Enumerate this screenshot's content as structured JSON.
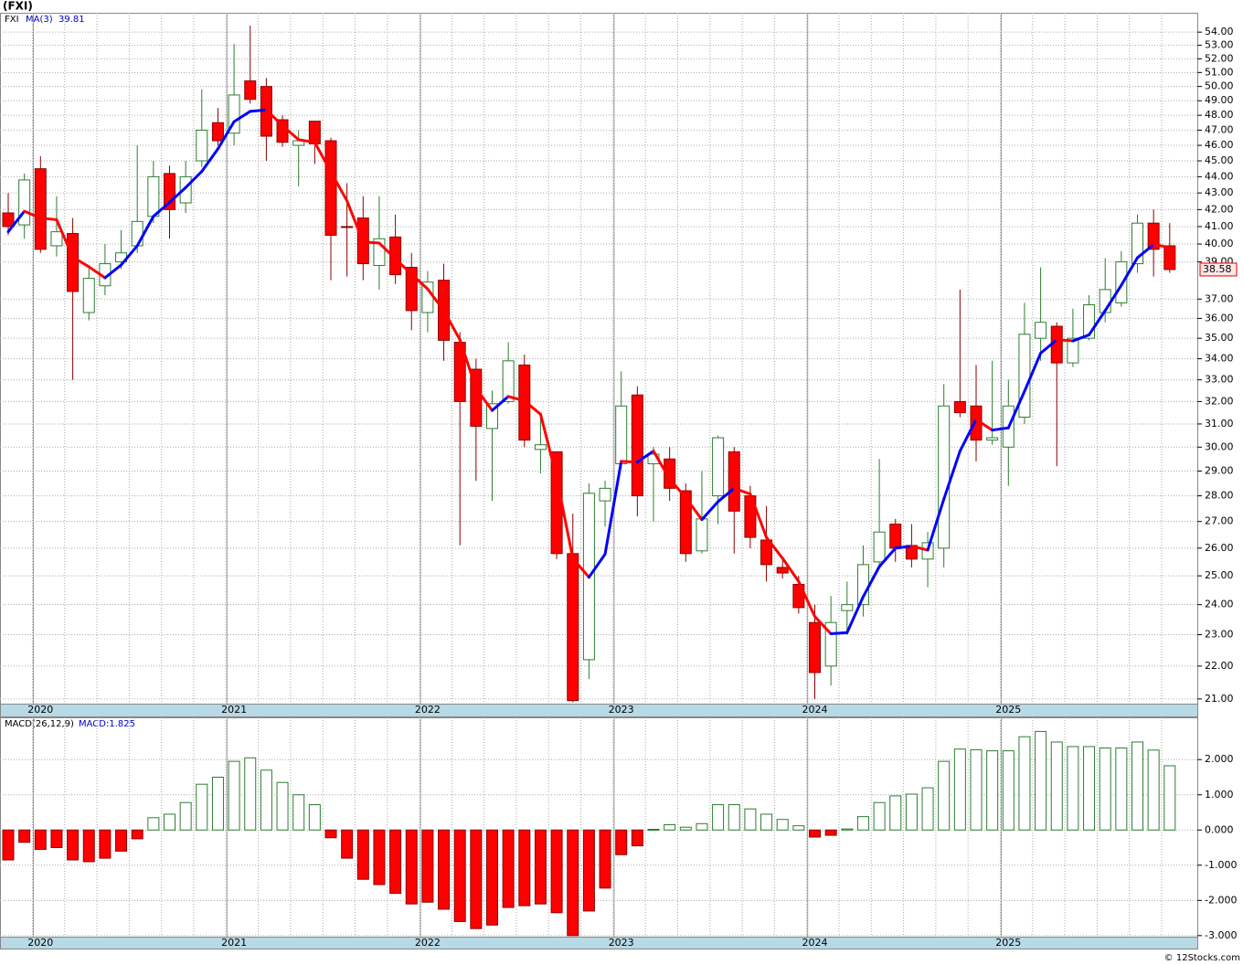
{
  "chart_data": [
    {
      "type": "candlestick",
      "title": "(FXI)",
      "symbol": "FXI",
      "ma_name": "MA(3)",
      "ma_label": "39.81",
      "log_scale": true,
      "categories": [
        null,
        null,
        "2020",
        null,
        null,
        null,
        null,
        null,
        null,
        null,
        null,
        null,
        null,
        null,
        "2021",
        null,
        null,
        null,
        null,
        null,
        null,
        null,
        null,
        null,
        null,
        null,
        "2022",
        null,
        null,
        null,
        null,
        null,
        null,
        null,
        null,
        null,
        null,
        null,
        "2023",
        null,
        null,
        null,
        null,
        null,
        null,
        null,
        null,
        null,
        null,
        null,
        "2024",
        null,
        null,
        null,
        null,
        null,
        null,
        null,
        null,
        null,
        null,
        null,
        "2025",
        null,
        null,
        null,
        null,
        null,
        null,
        null,
        null,
        null,
        null
      ],
      "open": [
        41.8,
        41.1,
        44.5,
        39.9,
        40.6,
        36.3,
        37.7,
        39.0,
        39.9,
        41.6,
        44.2,
        42.4,
        45.0,
        47.5,
        46.8,
        50.4,
        50.0,
        47.7,
        46.0,
        47.6,
        46.3,
        41.0,
        41.5,
        38.8,
        40.4,
        38.7,
        36.3,
        38.0,
        34.8,
        33.5,
        30.8,
        32.0,
        33.7,
        29.9,
        29.8,
        25.8,
        22.2,
        27.8,
        29.3,
        32.3,
        29.3,
        29.5,
        28.2,
        25.9,
        28.0,
        29.8,
        28.0,
        26.3,
        25.3,
        24.7,
        23.4,
        22.0,
        23.8,
        24.0,
        25.5,
        26.9,
        26.1,
        25.6,
        26.0,
        32.0,
        31.8,
        30.3,
        30.0,
        31.3,
        35.0,
        35.6,
        33.8,
        35.0,
        36.3,
        36.8,
        38.9,
        41.2,
        39.9
      ],
      "high": [
        43.0,
        44.2,
        45.3,
        42.8,
        41.5,
        38.8,
        40.0,
        40.8,
        46.0,
        45.0,
        44.7,
        45.0,
        49.8,
        48.5,
        53.1,
        54.5,
        50.6,
        48.0,
        47.0,
        47.5,
        46.5,
        43.6,
        42.8,
        42.8,
        41.7,
        39.5,
        38.5,
        38.9,
        35.3,
        34.0,
        32.5,
        34.8,
        34.2,
        31.3,
        29.6,
        27.3,
        28.5,
        28.6,
        33.4,
        32.7,
        30.0,
        30.0,
        28.5,
        29.0,
        30.5,
        30.0,
        28.4,
        27.6,
        25.6,
        25.0,
        24.0,
        24.3,
        24.8,
        26.1,
        29.5,
        27.1,
        26.9,
        26.6,
        32.8,
        37.5,
        33.7,
        33.9,
        33.0,
        36.8,
        38.7,
        35.8,
        36.5,
        37.2,
        39.2,
        39.6,
        41.7,
        42.0,
        41.2
      ],
      "low": [
        40.5,
        40.3,
        39.5,
        39.3,
        33.0,
        35.9,
        37.2,
        38.6,
        39.5,
        41.2,
        40.3,
        41.8,
        44.6,
        46.0,
        46.0,
        48.8,
        45.0,
        45.9,
        43.4,
        44.8,
        38.0,
        38.2,
        38.0,
        37.5,
        37.8,
        35.4,
        35.3,
        33.9,
        26.1,
        28.6,
        27.8,
        31.9,
        30.0,
        28.9,
        25.6,
        20.9,
        21.6,
        26.8,
        29.1,
        27.2,
        27.0,
        27.8,
        25.5,
        25.8,
        26.9,
        25.8,
        26.0,
        24.8,
        24.9,
        23.7,
        21.0,
        21.4,
        23.0,
        23.6,
        25.3,
        25.5,
        25.3,
        24.6,
        25.3,
        31.3,
        29.4,
        30.1,
        28.4,
        31.0,
        33.9,
        29.2,
        33.6,
        34.9,
        35.8,
        36.6,
        38.4,
        38.2,
        38.4
      ],
      "close": [
        41.0,
        43.8,
        39.7,
        40.7,
        37.4,
        38.1,
        38.9,
        39.5,
        41.3,
        44.0,
        42.0,
        44.0,
        47.0,
        46.3,
        49.4,
        49.1,
        46.6,
        46.2,
        46.3,
        46.1,
        40.5,
        40.95,
        38.9,
        40.3,
        38.3,
        36.4,
        37.9,
        34.9,
        32.0,
        30.9,
        31.9,
        33.9,
        30.3,
        30.1,
        25.8,
        20.95,
        28.1,
        28.3,
        31.8,
        28.0,
        29.7,
        28.3,
        25.8,
        27.1,
        30.4,
        27.4,
        26.4,
        25.4,
        25.1,
        23.9,
        21.8,
        23.4,
        24.0,
        25.4,
        26.6,
        26.0,
        25.6,
        26.2,
        31.8,
        31.5,
        30.3,
        30.4,
        31.8,
        35.2,
        35.8,
        33.8,
        35.0,
        36.7,
        37.5,
        39.0,
        41.2,
        39.7,
        38.58
      ],
      "ma": [
        40.7,
        41.9,
        41.5,
        41.4,
        39.27,
        38.73,
        38.13,
        38.83,
        39.9,
        41.6,
        42.43,
        43.33,
        44.33,
        45.77,
        47.57,
        48.27,
        48.37,
        47.3,
        46.37,
        46.2,
        44.3,
        42.52,
        40.12,
        40.05,
        39.17,
        38.33,
        37.53,
        36.4,
        34.93,
        32.6,
        31.6,
        32.23,
        32.03,
        31.43,
        28.73,
        25.62,
        24.95,
        25.78,
        29.4,
        29.37,
        29.83,
        28.67,
        27.93,
        27.07,
        27.77,
        28.3,
        28.07,
        26.4,
        25.63,
        24.8,
        23.6,
        23.03,
        23.07,
        24.27,
        25.33,
        26.0,
        26.07,
        25.93,
        27.87,
        29.83,
        31.2,
        30.73,
        30.83,
        32.47,
        34.27,
        34.93,
        34.87,
        35.17,
        36.4,
        37.73,
        39.23,
        39.97,
        39.81
      ],
      "up_color": "#ffffff",
      "up_line": "#2e7d32",
      "down_color": "#ff0000",
      "down_line": "#8b0000",
      "ma_up_color": "#0000ff",
      "ma_down_color": "#ff0000",
      "ylim": [
        20.86,
        55.5
      ],
      "yticks": [
        {
          "value": 21,
          "label": "21.00"
        },
        {
          "value": 22,
          "label": "22.00"
        },
        {
          "value": 23,
          "label": "23.00"
        },
        {
          "value": 24,
          "label": "24.00"
        },
        {
          "value": 25,
          "label": "25.00"
        },
        {
          "value": 26,
          "label": "26.00"
        },
        {
          "value": 27,
          "label": "27.00"
        },
        {
          "value": 28,
          "label": "28.00"
        },
        {
          "value": 29,
          "label": "29.00"
        },
        {
          "value": 30,
          "label": "30.00"
        },
        {
          "value": 31,
          "label": "31.00"
        },
        {
          "value": 32,
          "label": "32.00"
        },
        {
          "value": 33,
          "label": "33.00"
        },
        {
          "value": 34,
          "label": "34.00"
        },
        {
          "value": 35,
          "label": "35.00"
        },
        {
          "value": 36,
          "label": "36.00"
        },
        {
          "value": 37,
          "label": "37.00"
        },
        {
          "value": 39,
          "label": "39.00"
        },
        {
          "value": 40,
          "label": "40.00"
        },
        {
          "value": 41,
          "label": "41.00"
        },
        {
          "value": 42,
          "label": "42.00"
        },
        {
          "value": 43,
          "label": "43.00"
        },
        {
          "value": 44,
          "label": "44.00"
        },
        {
          "value": 45,
          "label": "45.00"
        },
        {
          "value": 46,
          "label": "46.00"
        },
        {
          "value": 47,
          "label": "47.00"
        },
        {
          "value": 48,
          "label": "48.00"
        },
        {
          "value": 49,
          "label": "49.00"
        },
        {
          "value": 50,
          "label": "50.00"
        },
        {
          "value": 51,
          "label": "51.00"
        },
        {
          "value": 52,
          "label": "52.00"
        },
        {
          "value": 53,
          "label": "53.00"
        },
        {
          "value": 54,
          "label": "54.00"
        }
      ],
      "grid": true
    },
    {
      "type": "histogram_macd",
      "title": "MACD(26,12,9)",
      "macd_label": "MACD:1.825",
      "categories": [
        null,
        null,
        "2020",
        null,
        null,
        null,
        null,
        null,
        null,
        null,
        null,
        null,
        null,
        null,
        "2021",
        null,
        null,
        null,
        null,
        null,
        null,
        null,
        null,
        null,
        null,
        null,
        "2022",
        null,
        null,
        null,
        null,
        null,
        null,
        null,
        null,
        null,
        null,
        null,
        "2023",
        null,
        null,
        null,
        null,
        null,
        null,
        null,
        null,
        null,
        null,
        null,
        "2024",
        null,
        null,
        null,
        null,
        null,
        null,
        null,
        null,
        null,
        null,
        null,
        "2025",
        null,
        null,
        null,
        null,
        null,
        null,
        null,
        null,
        null,
        null
      ],
      "values": [
        -0.85,
        -0.35,
        -0.55,
        -0.5,
        -0.85,
        -0.9,
        -0.8,
        -0.6,
        -0.25,
        0.35,
        0.45,
        0.78,
        1.3,
        1.5,
        1.95,
        2.05,
        1.7,
        1.35,
        1.0,
        0.72,
        -0.22,
        -0.8,
        -1.4,
        -1.55,
        -1.8,
        -2.1,
        -2.05,
        -2.25,
        -2.6,
        -2.8,
        -2.7,
        -2.2,
        -2.15,
        -2.1,
        -2.35,
        -3.0,
        -2.3,
        -1.65,
        -0.7,
        -0.45,
        0.02,
        0.15,
        0.08,
        0.18,
        0.72,
        0.72,
        0.6,
        0.45,
        0.3,
        0.12,
        -0.2,
        -0.15,
        0.03,
        0.38,
        0.78,
        0.97,
        1.02,
        1.2,
        1.95,
        2.3,
        2.28,
        2.25,
        2.25,
        2.65,
        2.8,
        2.5,
        2.37,
        2.37,
        2.33,
        2.33,
        2.5,
        2.27,
        1.825
      ],
      "pos_color": "#ffffff",
      "pos_line": "#2e7d32",
      "neg_color": "#ff0000",
      "neg_line": "#8b0000",
      "ylim": [
        -3.03,
        3.2
      ],
      "yticks": [
        {
          "value": -3,
          "label": "-3.000"
        },
        {
          "value": -2,
          "label": "-2.000"
        },
        {
          "value": -1,
          "label": "-1.000"
        },
        {
          "value": 0,
          "label": "0.000"
        },
        {
          "value": 1,
          "label": "1.000"
        },
        {
          "value": 2,
          "label": "2.000"
        }
      ],
      "grid": true
    }
  ],
  "footer": "© 12Stocks.com"
}
